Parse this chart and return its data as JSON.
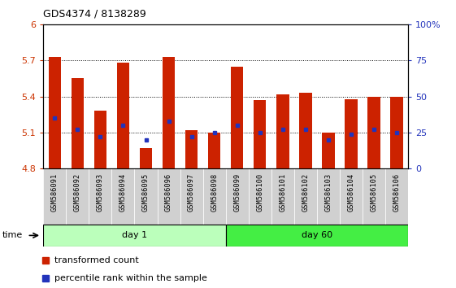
{
  "title": "GDS4374 / 8138289",
  "samples": [
    "GSM586091",
    "GSM586092",
    "GSM586093",
    "GSM586094",
    "GSM586095",
    "GSM586096",
    "GSM586097",
    "GSM586098",
    "GSM586099",
    "GSM586100",
    "GSM586101",
    "GSM586102",
    "GSM586103",
    "GSM586104",
    "GSM586105",
    "GSM586106"
  ],
  "red_values": [
    5.73,
    5.55,
    5.28,
    5.68,
    4.97,
    5.73,
    5.12,
    5.1,
    5.65,
    5.37,
    5.42,
    5.43,
    5.1,
    5.38,
    5.4,
    5.4
  ],
  "blue_values_pct": [
    35,
    27,
    22,
    30,
    20,
    33,
    22,
    25,
    30,
    25,
    27,
    27,
    20,
    24,
    27,
    25
  ],
  "ymin": 4.8,
  "ymax": 6.0,
  "yticks": [
    4.8,
    5.1,
    5.4,
    5.7,
    6.0
  ],
  "ytick_labels": [
    "4.8",
    "5.1",
    "5.4",
    "5.7",
    "6"
  ],
  "right_yticks": [
    0,
    25,
    50,
    75,
    100
  ],
  "right_ytick_labels": [
    "0",
    "25",
    "50",
    "75",
    "100%"
  ],
  "bar_color": "#cc2200",
  "marker_color": "#2233bb",
  "bar_width": 0.55,
  "base_value": 4.8,
  "plot_bg": "#ffffff",
  "day1_color": "#bbffbb",
  "day60_color": "#44ee44",
  "left_label_color": "#cc3300",
  "right_label_color": "#2233bb",
  "xtick_bg": "#d0d0d0",
  "legend_red": "transformed count",
  "legend_blue": "percentile rank within the sample"
}
